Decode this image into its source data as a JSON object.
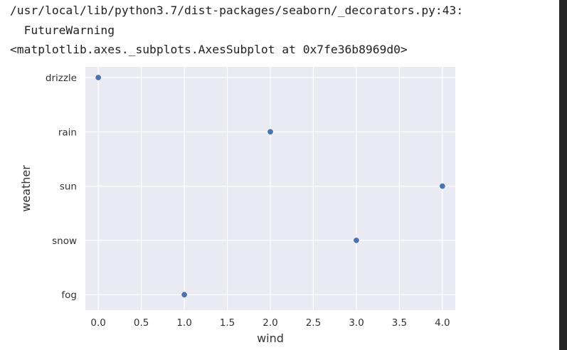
{
  "output": {
    "warning_line": "/usr/local/lib/python3.7/dist-packages/seaborn/_decorators.py:43:",
    "warning_type": "  FutureWarning",
    "repr_line": "<matplotlib.axes._subplots.AxesSubplot at 0x7fe36b8969d0>"
  },
  "chart_data": {
    "type": "scatter",
    "title": "",
    "xlabel": "wind",
    "ylabel": "weather",
    "xlim": [
      -0.15,
      4.15
    ],
    "x_ticks": [
      "0.0",
      "0.5",
      "1.0",
      "1.5",
      "2.0",
      "2.5",
      "3.0",
      "3.5",
      "4.0"
    ],
    "categories": [
      "drizzle",
      "rain",
      "sun",
      "snow",
      "fog"
    ],
    "points": [
      {
        "x": 0.0,
        "y": "drizzle"
      },
      {
        "x": 2.0,
        "y": "rain"
      },
      {
        "x": 4.0,
        "y": "sun"
      },
      {
        "x": 3.0,
        "y": "snow"
      },
      {
        "x": 1.0,
        "y": "fog"
      }
    ],
    "grid": true,
    "colors": {
      "background": "#eaeaf2",
      "grid": "#ffffff",
      "marker": "#4c72b0"
    }
  }
}
